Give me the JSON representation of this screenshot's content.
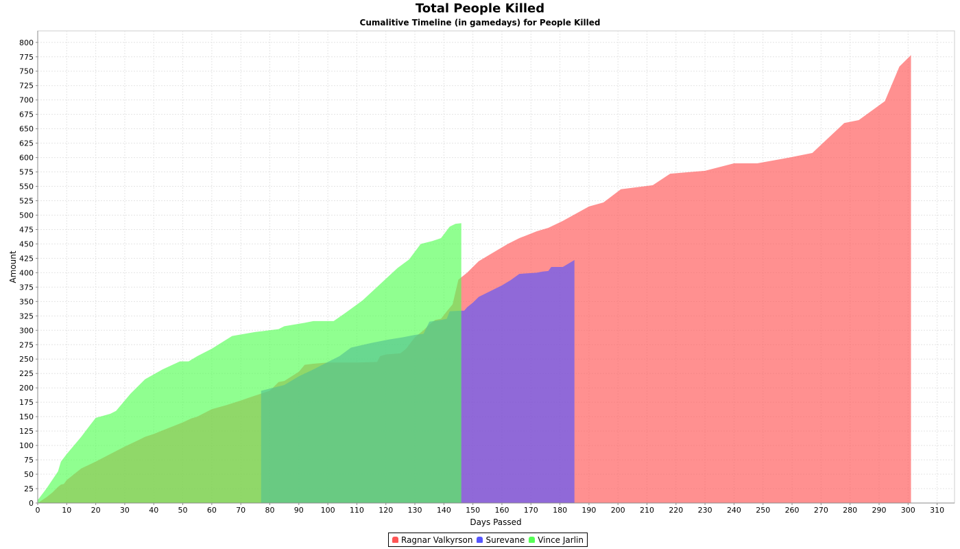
{
  "chart_data": {
    "type": "area",
    "title": "Total People Killed",
    "subtitle": "Cumalitive Timeline (in gamedays) for People Killed",
    "xlabel": "Days Passed",
    "ylabel": "Amount",
    "xlim": [
      0,
      316
    ],
    "ylim": [
      0,
      820
    ],
    "xticks": [
      0,
      10,
      20,
      30,
      40,
      50,
      60,
      70,
      80,
      90,
      100,
      110,
      120,
      130,
      140,
      150,
      160,
      170,
      180,
      190,
      200,
      210,
      220,
      230,
      240,
      250,
      260,
      270,
      280,
      290,
      300,
      310
    ],
    "yticks": [
      0,
      25,
      50,
      75,
      100,
      125,
      150,
      175,
      200,
      225,
      250,
      275,
      300,
      325,
      350,
      375,
      400,
      425,
      450,
      475,
      500,
      525,
      550,
      575,
      600,
      625,
      650,
      675,
      700,
      725,
      750,
      775,
      800
    ],
    "grid": true,
    "legend_position": "bottom-center",
    "series": [
      {
        "name": "Ragnar Valkyrson",
        "color": "#ff5555",
        "points": [
          [
            0,
            0
          ],
          [
            3,
            10
          ],
          [
            5,
            18
          ],
          [
            7,
            28
          ],
          [
            8,
            32
          ],
          [
            9,
            33
          ],
          [
            10,
            40
          ],
          [
            12,
            48
          ],
          [
            15,
            60
          ],
          [
            20,
            72
          ],
          [
            25,
            85
          ],
          [
            30,
            98
          ],
          [
            35,
            110
          ],
          [
            37,
            115
          ],
          [
            40,
            120
          ],
          [
            45,
            130
          ],
          [
            50,
            140
          ],
          [
            53,
            147
          ],
          [
            55,
            150
          ],
          [
            60,
            163
          ],
          [
            65,
            170
          ],
          [
            70,
            178
          ],
          [
            74,
            185
          ],
          [
            77,
            190
          ],
          [
            80,
            195
          ],
          [
            81,
            200
          ],
          [
            83,
            210
          ],
          [
            85,
            212
          ],
          [
            90,
            228
          ],
          [
            92,
            240
          ],
          [
            95,
            242
          ],
          [
            100,
            244
          ],
          [
            105,
            244
          ],
          [
            110,
            244
          ],
          [
            117,
            245
          ],
          [
            118,
            255
          ],
          [
            120,
            258
          ],
          [
            125,
            260
          ],
          [
            127,
            268
          ],
          [
            130,
            288
          ],
          [
            133,
            300
          ],
          [
            135,
            310
          ],
          [
            137,
            318
          ],
          [
            139,
            320
          ],
          [
            141,
            333
          ],
          [
            143,
            345
          ],
          [
            145,
            388
          ],
          [
            146,
            392
          ],
          [
            148,
            400
          ],
          [
            152,
            420
          ],
          [
            156,
            432
          ],
          [
            162,
            450
          ],
          [
            166,
            460
          ],
          [
            172,
            472
          ],
          [
            176,
            478
          ],
          [
            181,
            490
          ],
          [
            190,
            515
          ],
          [
            195,
            522
          ],
          [
            201,
            545
          ],
          [
            212,
            552
          ],
          [
            218,
            572
          ],
          [
            230,
            577
          ],
          [
            240,
            590
          ],
          [
            248,
            590
          ],
          [
            259,
            600
          ],
          [
            267,
            608
          ],
          [
            278,
            660
          ],
          [
            283,
            665
          ],
          [
            292,
            698
          ],
          [
            297,
            758
          ],
          [
            301,
            778
          ]
        ]
      },
      {
        "name": "Surevane",
        "color": "#5555ff",
        "points": [
          [
            77,
            195
          ],
          [
            85,
            205
          ],
          [
            90,
            220
          ],
          [
            95,
            232
          ],
          [
            100,
            245
          ],
          [
            104,
            255
          ],
          [
            108,
            270
          ],
          [
            115,
            278
          ],
          [
            121,
            284
          ],
          [
            126,
            288
          ],
          [
            130,
            292
          ],
          [
            133,
            294
          ],
          [
            135,
            315
          ],
          [
            139,
            318
          ],
          [
            141,
            320
          ],
          [
            142,
            333
          ],
          [
            146,
            334
          ],
          [
            147,
            334
          ],
          [
            148,
            340
          ],
          [
            150,
            348
          ],
          [
            152,
            358
          ],
          [
            156,
            368
          ],
          [
            160,
            378
          ],
          [
            163,
            387
          ],
          [
            166,
            398
          ],
          [
            172,
            400
          ],
          [
            174,
            402
          ],
          [
            176,
            403
          ],
          [
            177,
            410
          ],
          [
            181,
            410
          ],
          [
            185,
            422
          ]
        ]
      },
      {
        "name": "Vince Jarlin",
        "color": "#55ff55",
        "points": [
          [
            0,
            5
          ],
          [
            3,
            25
          ],
          [
            7,
            55
          ],
          [
            8,
            72
          ],
          [
            10,
            85
          ],
          [
            15,
            115
          ],
          [
            18,
            135
          ],
          [
            20,
            148
          ],
          [
            25,
            155
          ],
          [
            27,
            160
          ],
          [
            32,
            190
          ],
          [
            37,
            215
          ],
          [
            43,
            232
          ],
          [
            49,
            246
          ],
          [
            52,
            246
          ],
          [
            55,
            255
          ],
          [
            60,
            268
          ],
          [
            67,
            290
          ],
          [
            75,
            297
          ],
          [
            83,
            302
          ],
          [
            85,
            307
          ],
          [
            92,
            313
          ],
          [
            95,
            316
          ],
          [
            102,
            316
          ],
          [
            106,
            330
          ],
          [
            112,
            352
          ],
          [
            118,
            380
          ],
          [
            124,
            408
          ],
          [
            128,
            423
          ],
          [
            132,
            450
          ],
          [
            136,
            455
          ],
          [
            139,
            460
          ],
          [
            142,
            480
          ],
          [
            144,
            485
          ],
          [
            146,
            486
          ]
        ]
      }
    ]
  }
}
